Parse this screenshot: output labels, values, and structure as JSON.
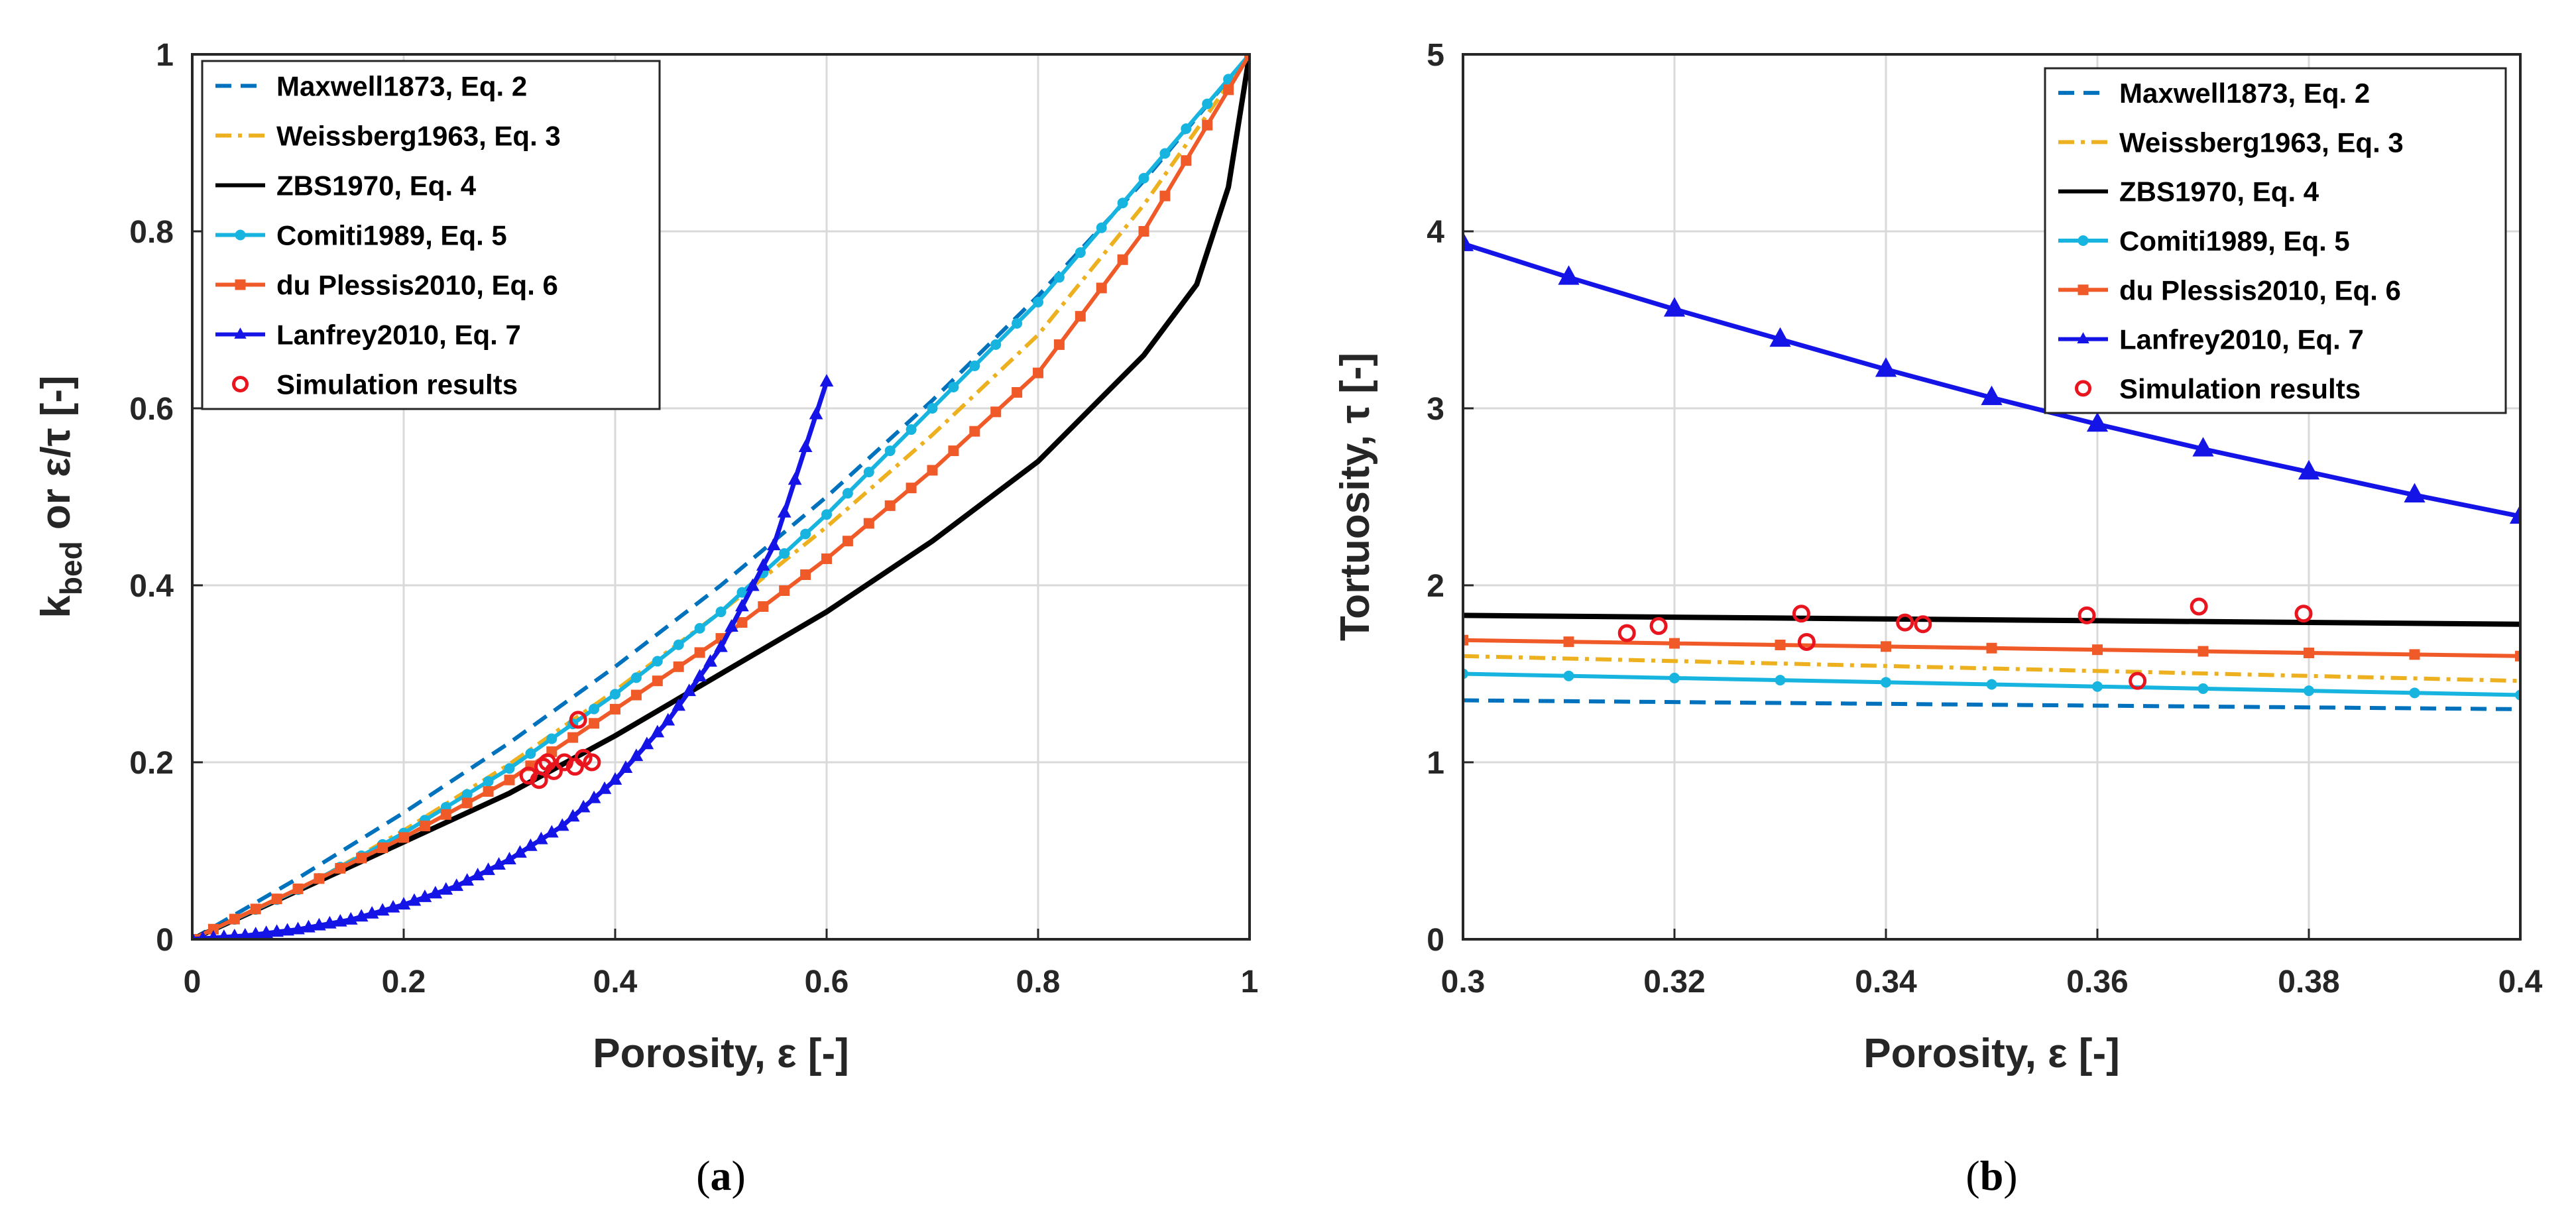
{
  "chart_data": [
    {
      "panel": "a",
      "caption": {
        "open": "(",
        "letter": "a",
        "close": ")"
      },
      "type": "line",
      "xlabel": "Porosity, ε [-]",
      "ylabel": {
        "k": "k",
        "sub": "bed",
        "rest": " or  ε/τ [-]"
      },
      "xlim": [
        0,
        1
      ],
      "ylim": [
        0,
        1
      ],
      "xticks": [
        "0",
        "0.2",
        "0.4",
        "0.6",
        "0.8",
        "1"
      ],
      "yticks": [
        "0",
        "0.2",
        "0.4",
        "0.6",
        "0.8",
        "1"
      ],
      "grid": true,
      "legend_position": "top-left",
      "series": [
        {
          "name": "Maxwell1873, Eq. 2",
          "color": "#0072BD",
          "style": "dashed",
          "marker": "none",
          "x": [
            0,
            0.1,
            0.2,
            0.3,
            0.4,
            0.5,
            0.6,
            0.7,
            0.8,
            0.9,
            1.0
          ],
          "y": [
            0,
            0.069,
            0.143,
            0.222,
            0.308,
            0.4,
            0.5,
            0.609,
            0.727,
            0.857,
            1.0
          ]
        },
        {
          "name": "Weissberg1963, Eq. 3",
          "color": "#EDB120",
          "style": "dashdot",
          "marker": "none",
          "x": [
            0,
            0.1,
            0.2,
            0.3,
            0.4,
            0.5,
            0.6,
            0.7,
            0.8,
            0.9,
            1.0
          ],
          "y": [
            0,
            0.055,
            0.123,
            0.198,
            0.281,
            0.37,
            0.466,
            0.57,
            0.683,
            0.83,
            1.0
          ]
        },
        {
          "name": "ZBS1970, Eq. 4",
          "color": "#000000",
          "style": "solid",
          "marker": "none",
          "x": [
            0,
            0.1,
            0.2,
            0.3,
            0.4,
            0.5,
            0.6,
            0.7,
            0.8,
            0.9,
            0.95,
            0.98,
            1.0
          ],
          "y": [
            0,
            0.055,
            0.11,
            0.165,
            0.23,
            0.3,
            0.37,
            0.45,
            0.54,
            0.66,
            0.74,
            0.85,
            1.0
          ]
        },
        {
          "name": "Comiti1989, Eq. 5",
          "color": "#18B4E0",
          "style": "solid",
          "marker": "dot",
          "x": [
            0,
            0.1,
            0.2,
            0.3,
            0.4,
            0.5,
            0.6,
            0.7,
            0.8,
            0.9,
            1.0
          ],
          "y": [
            0,
            0.056,
            0.12,
            0.193,
            0.277,
            0.37,
            0.48,
            0.6,
            0.72,
            0.86,
            1.0
          ]
        },
        {
          "name": "du Plessis2010, Eq. 6",
          "color": "#F05A28",
          "style": "solid",
          "marker": "square",
          "x": [
            0,
            0.1,
            0.2,
            0.3,
            0.4,
            0.5,
            0.6,
            0.7,
            0.8,
            0.9,
            1.0
          ],
          "y": [
            0,
            0.057,
            0.115,
            0.18,
            0.26,
            0.34,
            0.43,
            0.53,
            0.64,
            0.8,
            1.0
          ]
        },
        {
          "name": "Lanfrey2010, Eq. 7",
          "color": "#1414E6",
          "style": "solid",
          "marker": "triangle",
          "x": [
            0,
            0.05,
            0.1,
            0.15,
            0.2,
            0.25,
            0.3,
            0.35,
            0.4,
            0.45,
            0.5,
            0.55,
            0.6
          ],
          "y": [
            0,
            0.004,
            0.011,
            0.022,
            0.039,
            0.06,
            0.09,
            0.128,
            0.18,
            0.247,
            0.33,
            0.445,
            0.63
          ]
        },
        {
          "name": "Simulation results",
          "color": "#E8141E",
          "style": "none",
          "marker": "circle",
          "x": [
            0.318,
            0.328,
            0.332,
            0.336,
            0.342,
            0.352,
            0.362,
            0.37,
            0.378,
            0.365
          ],
          "y": [
            0.185,
            0.18,
            0.195,
            0.2,
            0.19,
            0.2,
            0.195,
            0.205,
            0.2,
            0.248
          ]
        }
      ]
    },
    {
      "panel": "b",
      "caption": {
        "open": "(",
        "letter": "b",
        "close": ")"
      },
      "type": "line",
      "xlabel": "Porosity, ε [-]",
      "ylabel": {
        "text": "Tortuosity,  τ  [-]"
      },
      "xlim": [
        0.3,
        0.4
      ],
      "ylim": [
        0,
        5
      ],
      "xticks": [
        "0.3",
        "0.32",
        "0.34",
        "0.36",
        "0.38",
        "0.4"
      ],
      "yticks": [
        "0",
        "1",
        "2",
        "3",
        "4",
        "5"
      ],
      "grid": true,
      "legend_position": "top-right",
      "series": [
        {
          "name": "Maxwell1873, Eq. 2",
          "color": "#0072BD",
          "style": "dashed",
          "marker": "none",
          "x": [
            0.3,
            0.35,
            0.4
          ],
          "y": [
            1.35,
            1.325,
            1.3
          ]
        },
        {
          "name": "Weissberg1963, Eq. 3",
          "color": "#EDB120",
          "style": "dashdot",
          "marker": "none",
          "x": [
            0.3,
            0.35,
            0.4
          ],
          "y": [
            1.6,
            1.53,
            1.46
          ]
        },
        {
          "name": "ZBS1970, Eq. 4",
          "color": "#000000",
          "style": "solid",
          "marker": "none",
          "x": [
            0.3,
            0.35,
            0.4
          ],
          "y": [
            1.83,
            1.805,
            1.78
          ]
        },
        {
          "name": "Comiti1989, Eq. 5",
          "color": "#18B4E0",
          "style": "solid",
          "marker": "dot",
          "x": [
            0.3,
            0.35,
            0.4
          ],
          "y": [
            1.5,
            1.44,
            1.38
          ]
        },
        {
          "name": "du Plessis2010, Eq. 6",
          "color": "#F05A28",
          "style": "solid",
          "marker": "square",
          "x": [
            0.3,
            0.35,
            0.4
          ],
          "y": [
            1.69,
            1.645,
            1.6
          ]
        },
        {
          "name": "Lanfrey2010, Eq. 7",
          "color": "#1414E6",
          "style": "solid",
          "marker": "triangle",
          "x": [
            0.3,
            0.31,
            0.32,
            0.33,
            0.34,
            0.35,
            0.36,
            0.37,
            0.38,
            0.39,
            0.4
          ],
          "y": [
            3.93,
            3.74,
            3.56,
            3.39,
            3.22,
            3.06,
            2.91,
            2.77,
            2.64,
            2.51,
            2.39
          ]
        },
        {
          "name": "Simulation results",
          "color": "#E8141E",
          "style": "none",
          "marker": "circle",
          "x": [
            0.3155,
            0.3185,
            0.332,
            0.3325,
            0.3418,
            0.3435,
            0.359,
            0.3638,
            0.3696,
            0.3795
          ],
          "y": [
            1.73,
            1.77,
            1.84,
            1.68,
            1.79,
            1.78,
            1.83,
            1.46,
            1.88,
            1.84
          ]
        }
      ]
    }
  ]
}
